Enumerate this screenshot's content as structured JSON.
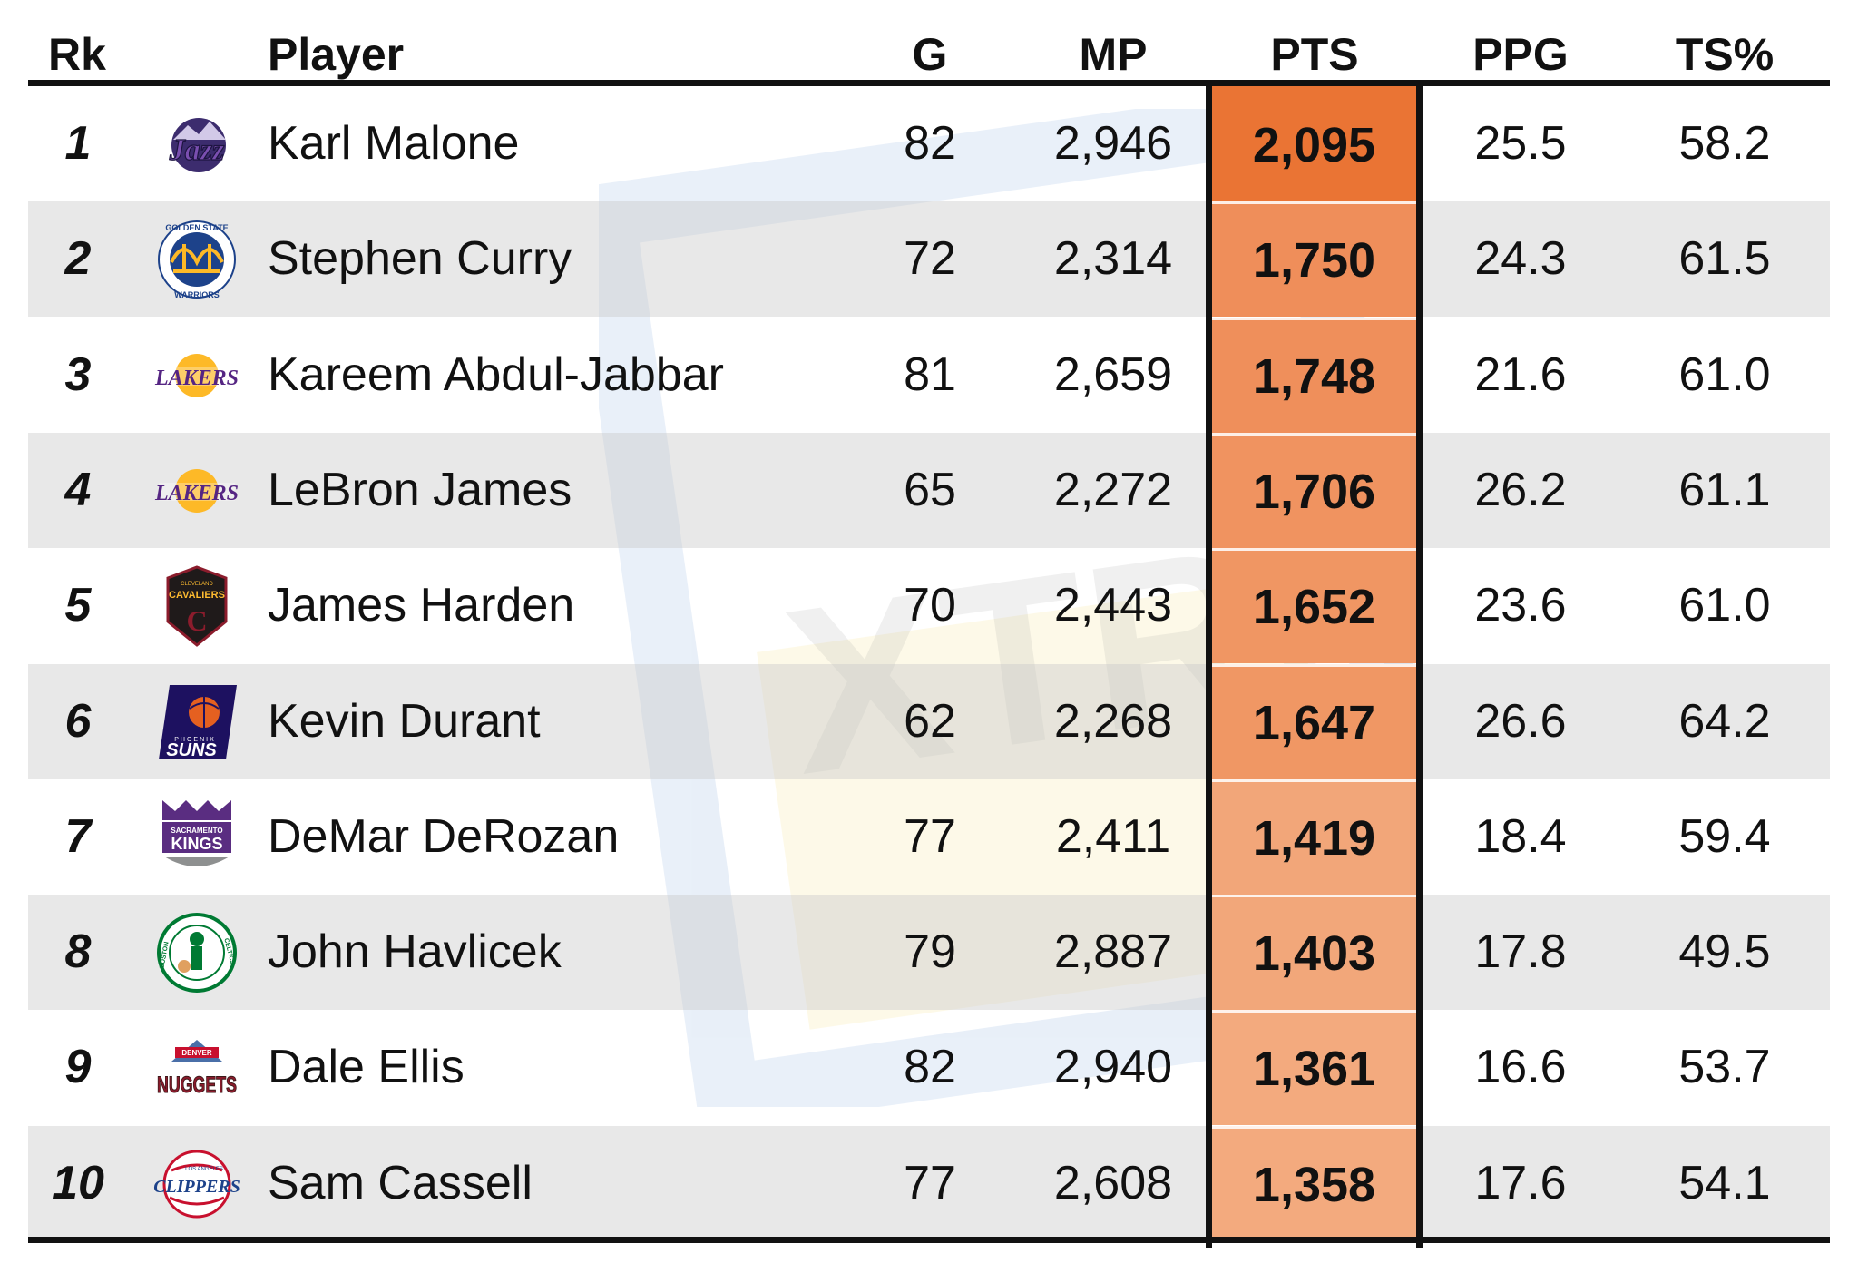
{
  "chart_data": {
    "type": "table",
    "columns": [
      "Rk",
      "Player",
      "G",
      "MP",
      "PTS",
      "PPG",
      "TS%"
    ],
    "highlight_column": "PTS",
    "rows": [
      {
        "rk": "1",
        "player": "Karl Malone",
        "team_logo": "jazz-logo",
        "g": "82",
        "mp": "2,946",
        "pts": "2,095",
        "ppg": "25.5",
        "ts": "58.2",
        "pts_value": 2095,
        "pts_color": "#ea7434"
      },
      {
        "rk": "2",
        "player": "Stephen Curry",
        "team_logo": "warriors-logo",
        "g": "72",
        "mp": "2,314",
        "pts": "1,750",
        "ppg": "24.3",
        "ts": "61.5",
        "pts_value": 1750,
        "pts_color": "#ef8e5a"
      },
      {
        "rk": "3",
        "player": "Kareem Abdul-Jabbar",
        "team_logo": "lakers-logo",
        "g": "81",
        "mp": "2,659",
        "pts": "1,748",
        "ppg": "21.6",
        "ts": "61.0",
        "pts_value": 1748,
        "pts_color": "#ef8f5b"
      },
      {
        "rk": "4",
        "player": "LeBron James",
        "team_logo": "lakers-logo",
        "g": "65",
        "mp": "2,272",
        "pts": "1,706",
        "ppg": "26.2",
        "ts": "61.1",
        "pts_value": 1706,
        "pts_color": "#f09360"
      },
      {
        "rk": "5",
        "player": "James Harden",
        "team_logo": "cavaliers-logo",
        "g": "70",
        "mp": "2,443",
        "pts": "1,652",
        "ppg": "23.6",
        "ts": "61.0",
        "pts_value": 1652,
        "pts_color": "#f09663"
      },
      {
        "rk": "6",
        "player": "Kevin Durant",
        "team_logo": "suns-logo",
        "g": "62",
        "mp": "2,268",
        "pts": "1,647",
        "ppg": "26.6",
        "ts": "64.2",
        "pts_value": 1647,
        "pts_color": "#f09764"
      },
      {
        "rk": "7",
        "player": "DeMar DeRozan",
        "team_logo": "kings-logo",
        "g": "77",
        "mp": "2,411",
        "pts": "1,419",
        "ppg": "18.4",
        "ts": "59.4",
        "pts_value": 1419,
        "pts_color": "#f2a679"
      },
      {
        "rk": "8",
        "player": "John Havlicek",
        "team_logo": "celtics-logo",
        "g": "79",
        "mp": "2,887",
        "pts": "1,403",
        "ppg": "17.8",
        "ts": "49.5",
        "pts_value": 1403,
        "pts_color": "#f2a77a"
      },
      {
        "rk": "9",
        "player": "Dale Ellis",
        "team_logo": "nuggets-logo",
        "g": "82",
        "mp": "2,940",
        "pts": "1,361",
        "ppg": "16.6",
        "ts": "53.7",
        "pts_value": 1361,
        "pts_color": "#f3aa7e"
      },
      {
        "rk": "10",
        "player": "Sam Cassell",
        "team_logo": "clippers-logo",
        "g": "77",
        "mp": "2,608",
        "pts": "1,358",
        "ppg": "17.6",
        "ts": "54.1",
        "pts_value": 1358,
        "pts_color": "#f3aa7e"
      }
    ]
  },
  "logos": {
    "jazz": "Jazz",
    "warriors_top": "GOLDEN STATE",
    "warriors_bottom": "WARRIORS",
    "lakers": "LAKERS",
    "cavaliers_top": "CLEVELAND",
    "cavaliers": "CAVALIERS",
    "suns_top": "PHOENIX",
    "suns": "SUNS",
    "kings_top": "SACRAMENTO",
    "kings": "KINGS",
    "celtics_left": "BOSTON",
    "celtics_right": "CELTICS",
    "nuggets_top": "DENVER",
    "nuggets": "NUGGETS",
    "clippers_top": "LOS ANGELES",
    "clippers": "CLIPPERS"
  },
  "watermark": "XTRA"
}
